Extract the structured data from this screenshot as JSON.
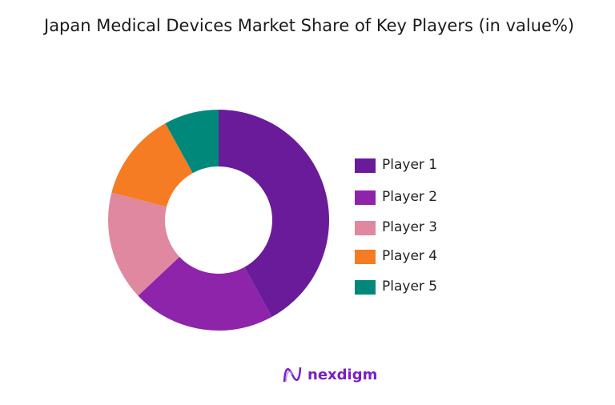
{
  "chart_data": {
    "type": "pie",
    "variant": "donut",
    "title": "Japan Medical Devices Market Share of Key Players (in value%)",
    "categories": [
      "Player 1",
      "Player 2",
      "Player 3",
      "Player 4",
      "Player 5"
    ],
    "values": [
      42,
      21,
      16,
      13,
      8
    ],
    "colors": [
      "#6a1b9a",
      "#8e24aa",
      "#e088a0",
      "#f57c22",
      "#00897b"
    ],
    "legend_position": "right"
  },
  "brand": {
    "logo_text": "nexdigm",
    "color": "#7a1fc2"
  }
}
